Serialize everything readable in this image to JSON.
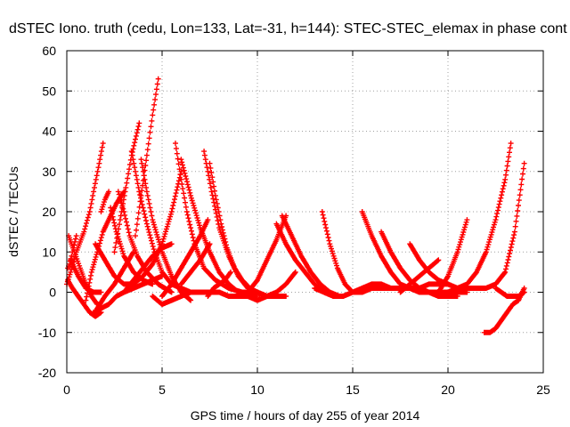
{
  "chart_data": {
    "type": "scatter",
    "title": "dSTEC Iono. truth (cedu, Lon=133, Lat=-31, h=144): STEC-STEC_elemax in phase cont",
    "xlabel": "GPS time / hours of day 255 of year 2014",
    "ylabel": "dSTEC  / TECUs",
    "xlim": [
      0,
      25
    ],
    "ylim": [
      -20,
      60
    ],
    "x_ticks": [
      0,
      5,
      10,
      15,
      20,
      25
    ],
    "y_ticks": [
      -20,
      -10,
      0,
      10,
      20,
      30,
      40,
      50,
      60
    ],
    "x_tick_labels": [
      "0",
      "5",
      "10",
      "15",
      "20",
      "25"
    ],
    "y_tick_labels": [
      "-20",
      "-10",
      "0",
      "10",
      "20",
      "30",
      "40",
      "50",
      "60"
    ],
    "grid": true,
    "marker": "+",
    "series_color": "#ff0000",
    "series": [
      {
        "x": [
          0.0,
          0.2,
          0.5,
          0.9,
          1.2,
          1.45,
          1.7,
          1.9
        ],
        "y": [
          2,
          5,
          10,
          15,
          20,
          26,
          32,
          37
        ]
      },
      {
        "x": [
          0.05,
          0.15,
          0.25,
          0.35,
          0.5
        ],
        "y": [
          6,
          7,
          9,
          11,
          14
        ]
      },
      {
        "x": [
          0.05,
          0.3,
          0.6,
          0.9,
          1.2,
          1.5,
          1.8
        ],
        "y": [
          3,
          1,
          -1,
          -3,
          -5,
          -6,
          -5
        ]
      },
      {
        "x": [
          0.1,
          0.4,
          0.7,
          1.0,
          1.3,
          1.6
        ],
        "y": [
          14,
          10,
          6,
          2,
          -1,
          -3
        ]
      },
      {
        "x": [
          0.2,
          0.6,
          1.0,
          1.4,
          1.8
        ],
        "y": [
          8,
          4,
          1,
          0,
          0
        ]
      },
      {
        "x": [
          1.0,
          1.3,
          1.6,
          1.9,
          2.2,
          2.6,
          3.0
        ],
        "y": [
          -2,
          5,
          10,
          15,
          18,
          22,
          25
        ]
      },
      {
        "x": [
          1.4,
          1.8,
          2.2,
          2.6,
          3.0,
          3.5,
          4.0,
          4.5,
          5.0
        ],
        "y": [
          -5,
          -4,
          -3,
          -1,
          0,
          1,
          2,
          3,
          4
        ]
      },
      {
        "x": [
          1.5,
          2.0,
          2.5,
          3.0,
          3.5,
          4.0,
          4.5,
          5.0,
          5.5,
          6.0
        ],
        "y": [
          12,
          8,
          4,
          2,
          2,
          4,
          7,
          12,
          20,
          30
        ]
      },
      {
        "x": [
          1.6,
          2.0,
          2.5,
          3.0,
          3.5
        ],
        "y": [
          -4,
          -1,
          2,
          6,
          10
        ]
      },
      {
        "x": [
          1.8,
          2.0,
          2.2
        ],
        "y": [
          20,
          23,
          25
        ]
      },
      {
        "x": [
          2.3,
          2.6,
          3.0,
          3.5,
          4.0,
          4.5
        ],
        "y": [
          21,
          15,
          9,
          5,
          3,
          2
        ]
      },
      {
        "x": [
          2.5,
          2.8,
          3.1,
          3.4,
          3.8
        ],
        "y": [
          10,
          18,
          26,
          34,
          42
        ]
      },
      {
        "x": [
          2.7,
          3.0,
          3.3,
          3.7,
          4.2,
          4.8,
          5.5
        ],
        "y": [
          25,
          20,
          14,
          9,
          5,
          2,
          0
        ]
      },
      {
        "x": [
          3.0,
          3.5,
          4.0,
          4.5,
          5.0,
          5.5
        ],
        "y": [
          0,
          3,
          6,
          9,
          11,
          12
        ]
      },
      {
        "x": [
          3.4,
          3.8,
          4.2,
          4.6,
          5.0,
          5.5,
          6.0,
          6.5
        ],
        "y": [
          35,
          25,
          17,
          10,
          5,
          2,
          1,
          0
        ]
      },
      {
        "x": [
          3.6,
          3.9,
          4.2,
          4.5,
          4.8
        ],
        "y": [
          14,
          24,
          34,
          44,
          53
        ]
      },
      {
        "x": [
          3.9,
          4.2,
          4.5,
          5.0,
          5.5,
          6.0,
          6.5
        ],
        "y": [
          33,
          25,
          18,
          10,
          4,
          0,
          -2
        ]
      },
      {
        "x": [
          4.5,
          5.0,
          5.5,
          6.0,
          6.5,
          7.0,
          7.5,
          8.0,
          8.5,
          9.0,
          9.5
        ],
        "y": [
          -1,
          -3,
          -2,
          -1,
          0,
          0,
          0,
          0,
          -1,
          -1,
          -1
        ]
      },
      {
        "x": [
          5.0,
          5.5,
          6.0,
          6.5,
          7.0,
          7.4
        ],
        "y": [
          -1,
          2,
          6,
          10,
          14,
          18
        ]
      },
      {
        "x": [
          5.7,
          6.0,
          6.3,
          6.7,
          7.2,
          7.8,
          8.5,
          9.2,
          9.8
        ],
        "y": [
          37,
          28,
          20,
          12,
          6,
          3,
          1,
          0,
          0
        ]
      },
      {
        "x": [
          6.0,
          6.5,
          7.0,
          7.5,
          8.0,
          8.5,
          9.0,
          9.5,
          10.0
        ],
        "y": [
          33,
          24,
          16,
          10,
          5,
          2,
          0,
          -1,
          -1
        ]
      },
      {
        "x": [
          6.0,
          6.5,
          7.0,
          7.5
        ],
        "y": [
          2,
          5,
          8,
          12
        ]
      },
      {
        "x": [
          7.2,
          7.6,
          8.0,
          8.5,
          9.0,
          9.5,
          10.0,
          10.5,
          11.0,
          11.5
        ],
        "y": [
          35,
          25,
          16,
          9,
          4,
          1,
          0,
          -1,
          -1,
          -1
        ]
      },
      {
        "x": [
          7.5,
          7.8,
          8.1,
          8.4,
          8.8,
          9.2,
          9.6,
          10.0,
          10.5
        ],
        "y": [
          32,
          24,
          17,
          11,
          6,
          3,
          1,
          0,
          -1
        ]
      },
      {
        "x": [
          7.4,
          7.7,
          8.0,
          8.3,
          8.6
        ],
        "y": [
          -1,
          1,
          2,
          3,
          5
        ]
      },
      {
        "x": [
          9.5,
          10.0,
          10.5,
          11.0,
          11.5,
          12.0
        ],
        "y": [
          -1,
          -2,
          -1,
          0,
          2,
          5
        ]
      },
      {
        "x": [
          9.5,
          10.0,
          10.5,
          11.0,
          11.5
        ],
        "y": [
          0,
          3,
          8,
          13,
          19
        ]
      },
      {
        "x": [
          11.0,
          11.5,
          12.0,
          12.5,
          13.0,
          13.5,
          14.0
        ],
        "y": [
          17,
          12,
          8,
          5,
          2,
          0,
          -1
        ]
      },
      {
        "x": [
          11.3,
          11.8,
          12.3,
          12.8,
          13.3,
          13.8,
          14.3
        ],
        "y": [
          19,
          14,
          9,
          5,
          2,
          0,
          -1
        ]
      },
      {
        "x": [
          13.4,
          13.8,
          14.2,
          14.6,
          15.0,
          15.5,
          16.0,
          16.5,
          17.0
        ],
        "y": [
          20,
          12,
          6,
          2,
          0,
          0,
          1,
          1,
          1
        ]
      },
      {
        "x": [
          13.0,
          13.5,
          14.0,
          14.5,
          15.0,
          15.5,
          16.0,
          16.5,
          17.0,
          17.5,
          18.0,
          18.5,
          19.0,
          19.5,
          20.0
        ],
        "y": [
          1,
          0,
          -1,
          -1,
          0,
          1,
          2,
          2,
          1,
          1,
          1,
          1,
          2,
          2,
          2
        ]
      },
      {
        "x": [
          15.5,
          16.0,
          16.5,
          17.0,
          17.5,
          18.0,
          18.5,
          19.0,
          19.5,
          20.0,
          20.5,
          21.0
        ],
        "y": [
          20,
          14,
          9,
          5,
          2,
          1,
          0,
          0,
          0,
          0,
          0,
          0
        ]
      },
      {
        "x": [
          16.5,
          17.0,
          17.5,
          18.0,
          18.5,
          19.0,
          19.5,
          20.0,
          20.5
        ],
        "y": [
          15,
          10,
          6,
          3,
          1,
          0,
          -1,
          -1,
          -1
        ]
      },
      {
        "x": [
          17.5,
          18.0,
          18.5,
          19.0,
          19.5
        ],
        "y": [
          0,
          2,
          4,
          6,
          8
        ]
      },
      {
        "x": [
          18.0,
          18.5,
          19.0,
          19.5,
          20.0,
          20.5,
          21.0
        ],
        "y": [
          12,
          8,
          5,
          3,
          2,
          1,
          1
        ]
      },
      {
        "x": [
          19.5,
          20.0,
          20.5,
          21.0
        ],
        "y": [
          0,
          4,
          10,
          18
        ]
      },
      {
        "x": [
          20.0,
          20.5,
          21.0,
          21.5,
          22.0,
          22.5,
          23.0,
          23.3
        ],
        "y": [
          0,
          1,
          2,
          5,
          10,
          18,
          28,
          37
        ]
      },
      {
        "x": [
          20.5,
          21.0,
          21.5,
          22.0,
          22.5,
          23.0,
          23.5,
          24.0
        ],
        "y": [
          1,
          1,
          1,
          1,
          2,
          5,
          15,
          32
        ]
      },
      {
        "x": [
          21.9,
          22.2,
          22.5,
          22.8,
          23.1,
          23.4,
          23.7,
          24.0
        ],
        "y": [
          -10,
          -10,
          -9,
          -7,
          -5,
          -3,
          -2,
          1
        ]
      },
      {
        "x": [
          22.5,
          22.8,
          23.1,
          23.4,
          23.7,
          24.0
        ],
        "y": [
          1,
          0,
          -1,
          -1,
          -1,
          0
        ]
      }
    ]
  }
}
